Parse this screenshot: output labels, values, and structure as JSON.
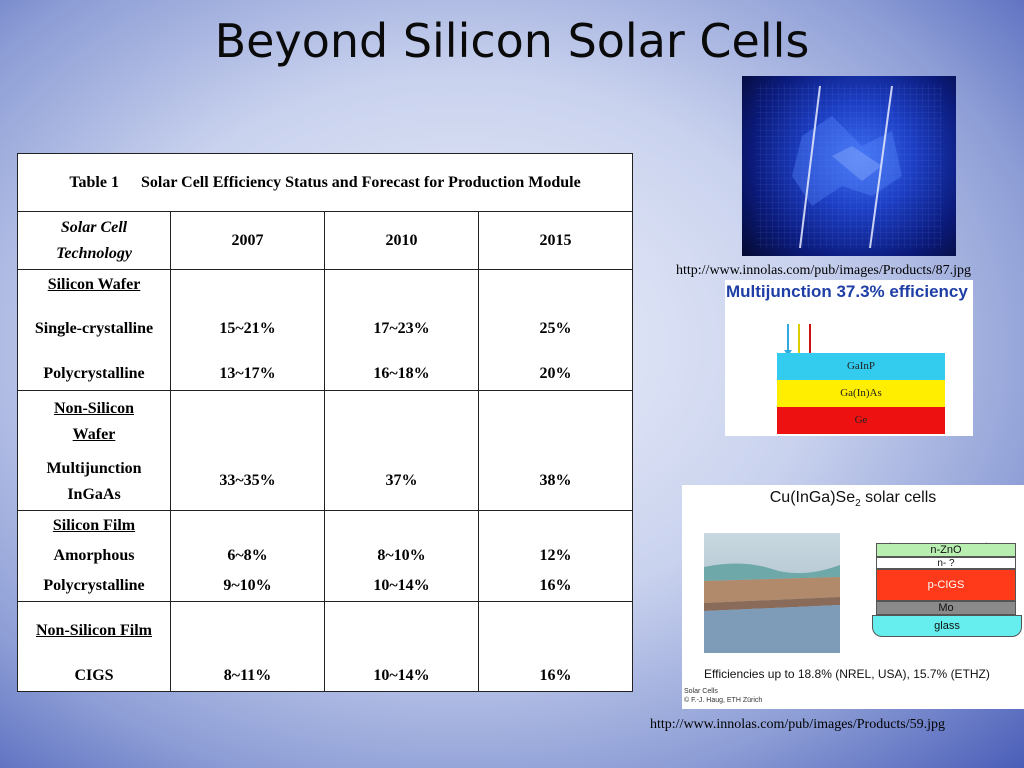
{
  "slide": {
    "title": "Beyond Silicon Solar Cells"
  },
  "table": {
    "caption_label": "Table 1",
    "caption_text": "Solar Cell Efficiency Status and Forecast for Production Module",
    "header": {
      "tech_line1": "Solar Cell",
      "tech_line2": "Technology",
      "y2007": "2007",
      "y2010": "2010",
      "y2015": "2015"
    },
    "groups": [
      {
        "heading": "Silicon Wafer",
        "rows": [
          {
            "name": "Single-crystalline",
            "v2007": "15~21%",
            "v2010": "17~23%",
            "v2015": "25%"
          },
          {
            "name": "Polycrystalline",
            "v2007": "13~17%",
            "v2010": "16~18%",
            "v2015": "20%"
          }
        ]
      },
      {
        "heading_line1": "Non-Silicon",
        "heading_line2": "Wafer",
        "rows": [
          {
            "name_line1": "Multijunction",
            "name_line2": "InGaAs",
            "v2007": "33~35%",
            "v2010": "37%",
            "v2015": "38%"
          }
        ]
      },
      {
        "heading": "Silicon Film",
        "rows": [
          {
            "name": "Amorphous",
            "v2007": "6~8%",
            "v2010": "8~10%",
            "v2015": "12%"
          },
          {
            "name": "Polycrystalline",
            "v2007": "9~10%",
            "v2010": "10~14%",
            "v2015": "16%"
          }
        ]
      },
      {
        "heading": "Non-Silicon Film",
        "rows": [
          {
            "name": "CIGS",
            "v2007": "8~11%",
            "v2010": "10~14%",
            "v2015": "16%"
          }
        ]
      }
    ]
  },
  "images": {
    "panel_url": "http://www.innolas.com/pub/images/Products/87.jpg",
    "multijunction": {
      "title": "Multijunction 37.3% efficiency",
      "layers": [
        "GaInP",
        "Ga(In)As",
        "Ge"
      ],
      "colors": {
        "top": "#33ccee",
        "mid": "#ffee00",
        "bottom": "#ee1111"
      }
    },
    "cigs": {
      "title": "Cu(InGa)Se",
      "title_sub": "2",
      "title_rest": " solar cells",
      "layers": [
        "n-ZnO",
        "n- ?",
        "p-CIGS",
        "Mo",
        "glass"
      ],
      "footer": "Efficiencies up to 18.8% (NREL, USA), 15.7% (ETHZ)",
      "credit1": "Solar Cells",
      "credit2": "© F.-J. Haug, ETH Zürich"
    },
    "cigs_url": "http://www.innolas.com/pub/images/Products/59.jpg"
  }
}
